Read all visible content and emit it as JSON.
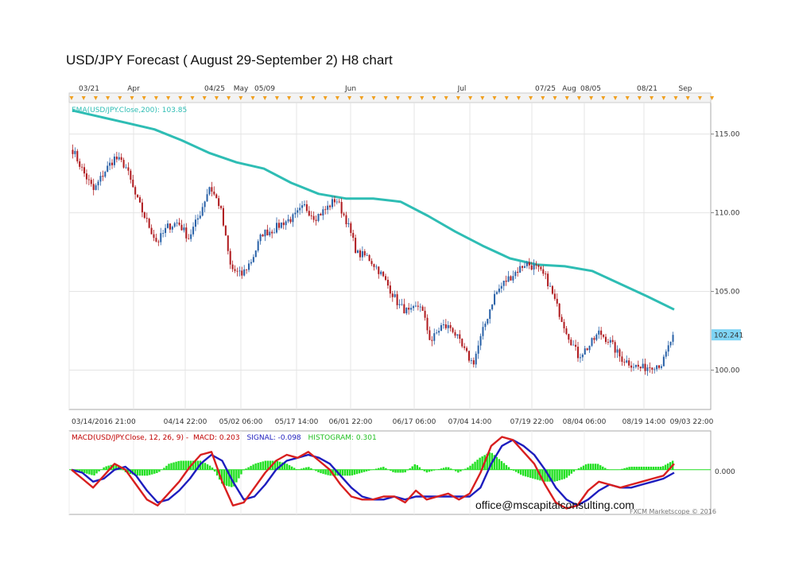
{
  "title": "USD/JPY Forecast ( August 29-September 2) H8 chart",
  "chart_data": [
    {
      "type": "candlestick",
      "ylim": [
        97.5,
        117.0
      ],
      "y_ticks": [
        "115.00",
        "110.00",
        "105.00",
        "100.00"
      ],
      "y_tick_values": [
        115,
        110,
        105,
        100
      ],
      "top_date_labels": [
        "03/21",
        "Apr",
        "04/25",
        "May",
        "05/09",
        "Jun",
        "Jul",
        "07/25",
        "Aug",
        "08/05",
        "08/21",
        "Sep"
      ],
      "x_tick_labels": [
        "03/14/2016 21:00",
        "04/14 22:00",
        "05/02 06:00",
        "05/17 14:00",
        "06/01 22:00",
        "06/17 06:00",
        "07/04 14:00",
        "07/19 22:00",
        "08/04 06:00",
        "08/19 14:00",
        "09/03 22:00"
      ],
      "ema": {
        "label": "EMA(USD/JPY.Close,200): 103.85",
        "color": "#2ebdb4",
        "values": [
          116.5,
          116.1,
          115.7,
          115.3,
          114.6,
          113.8,
          113.2,
          112.8,
          111.9,
          111.2,
          110.9,
          110.9,
          110.7,
          109.8,
          108.8,
          107.9,
          107.1,
          106.7,
          106.6,
          106.3,
          105.5,
          104.7,
          103.85
        ]
      },
      "price": {
        "current_label": "102.241",
        "current_value": 102.241,
        "up_color": "#2a62a8",
        "down_color": "#b01c20",
        "path": [
          114.0,
          112.6,
          111.4,
          112.6,
          113.5,
          113.0,
          111.0,
          109.5,
          108.1,
          109.1,
          109.4,
          108.4,
          109.8,
          111.7,
          110.4,
          106.5,
          106.0,
          107.0,
          108.7,
          108.9,
          109.4,
          109.7,
          110.4,
          109.7,
          110.2,
          110.9,
          109.5,
          107.4,
          107.2,
          106.4,
          105.3,
          104.1,
          103.6,
          104.2,
          101.8,
          102.8,
          102.7,
          101.4,
          100.4,
          102.6,
          104.7,
          105.6,
          106.2,
          106.8,
          106.5,
          105.8,
          104.0,
          102.3,
          100.9,
          101.5,
          102.4,
          101.8,
          100.8,
          100.4,
          100.1,
          100.3,
          100.4,
          102.241
        ]
      }
    },
    {
      "type": "macd",
      "label_prefix": "MACD(USD/JPY.Close, 12, 26, 9)  -",
      "macd_label": "MACD: 0.203",
      "signal_label": "SIGNAL: -0.098",
      "histogram_label": "HISTOGRAM: 0.301",
      "zero_label": "0.000",
      "macd_color": "#d81f1f",
      "signal_color": "#1d1dbe",
      "histogram_color": "#22e022",
      "ylim": [
        -1.5,
        1.3
      ],
      "macd": [
        0.0,
        -0.3,
        -0.6,
        -0.2,
        0.2,
        0.0,
        -0.5,
        -1.0,
        -1.2,
        -0.8,
        -0.4,
        0.1,
        0.5,
        0.6,
        -0.4,
        -1.2,
        -1.1,
        -0.6,
        -0.1,
        0.3,
        0.5,
        0.4,
        0.6,
        0.3,
        0.0,
        -0.5,
        -0.9,
        -1.0,
        -1.0,
        -0.9,
        -0.9,
        -1.1,
        -0.7,
        -1.0,
        -0.9,
        -0.8,
        -1.0,
        -0.8,
        -0.1,
        0.8,
        1.1,
        1.0,
        0.6,
        0.2,
        -0.5,
        -1.1,
        -1.3,
        -1.2,
        -0.7,
        -0.4,
        -0.5,
        -0.6,
        -0.5,
        -0.4,
        -0.3,
        -0.2,
        0.2
      ],
      "signal": [
        0.0,
        -0.1,
        -0.4,
        -0.3,
        0.0,
        0.1,
        -0.2,
        -0.7,
        -1.1,
        -1.0,
        -0.7,
        -0.3,
        0.2,
        0.5,
        0.3,
        -0.4,
        -1.0,
        -0.9,
        -0.5,
        0.0,
        0.3,
        0.4,
        0.5,
        0.4,
        0.2,
        -0.2,
        -0.6,
        -0.9,
        -1.0,
        -1.0,
        -0.9,
        -1.0,
        -0.9,
        -0.9,
        -0.9,
        -0.9,
        -0.9,
        -0.9,
        -0.6,
        0.2,
        0.8,
        1.0,
        0.8,
        0.5,
        0.0,
        -0.6,
        -1.0,
        -1.2,
        -1.0,
        -0.7,
        -0.5,
        -0.6,
        -0.6,
        -0.5,
        -0.4,
        -0.3,
        -0.1
      ],
      "histogram": [
        0.0,
        -0.1,
        -0.2,
        0.1,
        0.2,
        -0.1,
        -0.2,
        -0.2,
        -0.1,
        0.2,
        0.3,
        0.3,
        0.3,
        0.1,
        -0.5,
        -0.6,
        0.0,
        0.2,
        0.3,
        0.3,
        0.2,
        0.0,
        0.1,
        -0.1,
        -0.2,
        -0.2,
        -0.2,
        -0.1,
        0.0,
        0.1,
        -0.1,
        -0.1,
        0.2,
        -0.1,
        0.0,
        0.1,
        -0.1,
        0.1,
        0.4,
        0.6,
        0.3,
        0.0,
        -0.2,
        -0.3,
        -0.4,
        -0.4,
        -0.3,
        0.0,
        0.2,
        0.2,
        0.0,
        0.0,
        0.1,
        0.1,
        0.1,
        0.1,
        0.3
      ]
    }
  ],
  "email": "office@mscapitalconsulting.com",
  "copyright": "FXCM Marketscope © 2016"
}
